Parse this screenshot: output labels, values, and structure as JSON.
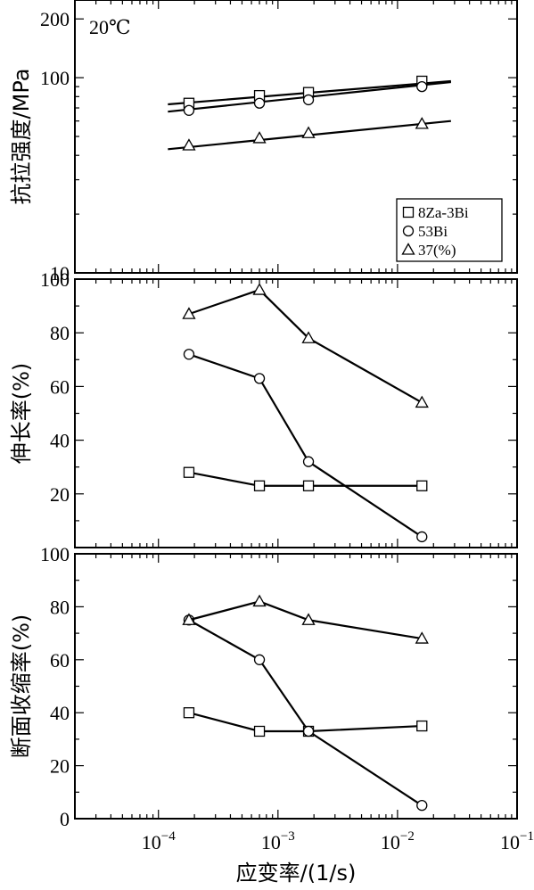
{
  "chart_data": [
    {
      "id": "strength",
      "type": "scatter",
      "ylabel": "抗拉强度/MPa",
      "yscale": "log",
      "ylim": [
        10,
        250
      ],
      "yticks": [
        10,
        100,
        200
      ],
      "ytick_labels": [
        "10",
        "100",
        "200"
      ],
      "annotation": "20℃",
      "legend": {
        "position": "lower-right",
        "entries": [
          "8Za-3Bi",
          "53Bi",
          "37(%)"
        ]
      },
      "series": [
        {
          "key": "sq",
          "marker": "square",
          "x": [
            0.00018,
            0.0007,
            0.0018,
            0.016
          ],
          "y": [
            74,
            81,
            84,
            96
          ],
          "fit": {
            "x": [
              0.00012,
              0.028
            ],
            "y": [
              73,
              96
            ]
          }
        },
        {
          "key": "ci",
          "marker": "circle",
          "x": [
            0.00018,
            0.0007,
            0.0018,
            0.016
          ],
          "y": [
            68,
            74,
            77,
            90
          ],
          "fit": {
            "x": [
              0.00012,
              0.028
            ],
            "y": [
              67,
              95
            ]
          }
        },
        {
          "key": "tr",
          "marker": "triangle",
          "x": [
            0.00018,
            0.0007,
            0.0018,
            0.016
          ],
          "y": [
            45,
            49,
            52,
            58
          ],
          "fit": {
            "x": [
              0.00012,
              0.028
            ],
            "y": [
              43,
              60
            ]
          }
        }
      ]
    },
    {
      "id": "elongation",
      "type": "line",
      "ylabel": "伸长率(%)",
      "ylim": [
        0,
        100
      ],
      "yticks": [
        0,
        20,
        40,
        60,
        80,
        100
      ],
      "ytick_labels": [
        "",
        "20",
        "40",
        "60",
        "80",
        "100"
      ],
      "series": [
        {
          "key": "sq",
          "marker": "square",
          "x": [
            0.00018,
            0.0007,
            0.0018,
            0.016
          ],
          "y": [
            28,
            23,
            23,
            23
          ]
        },
        {
          "key": "ci",
          "marker": "circle",
          "x": [
            0.00018,
            0.0007,
            0.0018,
            0.016
          ],
          "y": [
            72,
            63,
            32,
            4
          ]
        },
        {
          "key": "tr",
          "marker": "triangle",
          "x": [
            0.00018,
            0.0007,
            0.0018,
            0.016
          ],
          "y": [
            87,
            96,
            78,
            54
          ]
        }
      ]
    },
    {
      "id": "reduction",
      "type": "line",
      "ylabel": "断面收缩率(%)",
      "ylim": [
        0,
        100
      ],
      "yticks": [
        0,
        20,
        40,
        60,
        80,
        100
      ],
      "ytick_labels": [
        "0",
        "20",
        "40",
        "60",
        "80",
        "100"
      ],
      "series": [
        {
          "key": "sq",
          "marker": "square",
          "x": [
            0.00018,
            0.0007,
            0.0018,
            0.016
          ],
          "y": [
            40,
            33,
            33,
            35
          ]
        },
        {
          "key": "ci",
          "marker": "circle",
          "x": [
            0.00018,
            0.0007,
            0.0018,
            0.016
          ],
          "y": [
            75,
            60,
            33,
            5
          ]
        },
        {
          "key": "tr",
          "marker": "triangle",
          "x": [
            0.00018,
            0.0007,
            0.0018,
            0.016
          ],
          "y": [
            75,
            82,
            75,
            68
          ]
        }
      ]
    }
  ],
  "x_axis": {
    "label": "应变率/(1/s)",
    "scale": "log",
    "xlim": [
      2e-05,
      0.1
    ],
    "major_ticks": [
      0.0001,
      0.001,
      0.01,
      0.1
    ],
    "tick_labels": [
      {
        "base": "10",
        "exp": "−4"
      },
      {
        "base": "10",
        "exp": "−3"
      },
      {
        "base": "10",
        "exp": "−2"
      },
      {
        "base": "10",
        "exp": "−1"
      }
    ]
  }
}
